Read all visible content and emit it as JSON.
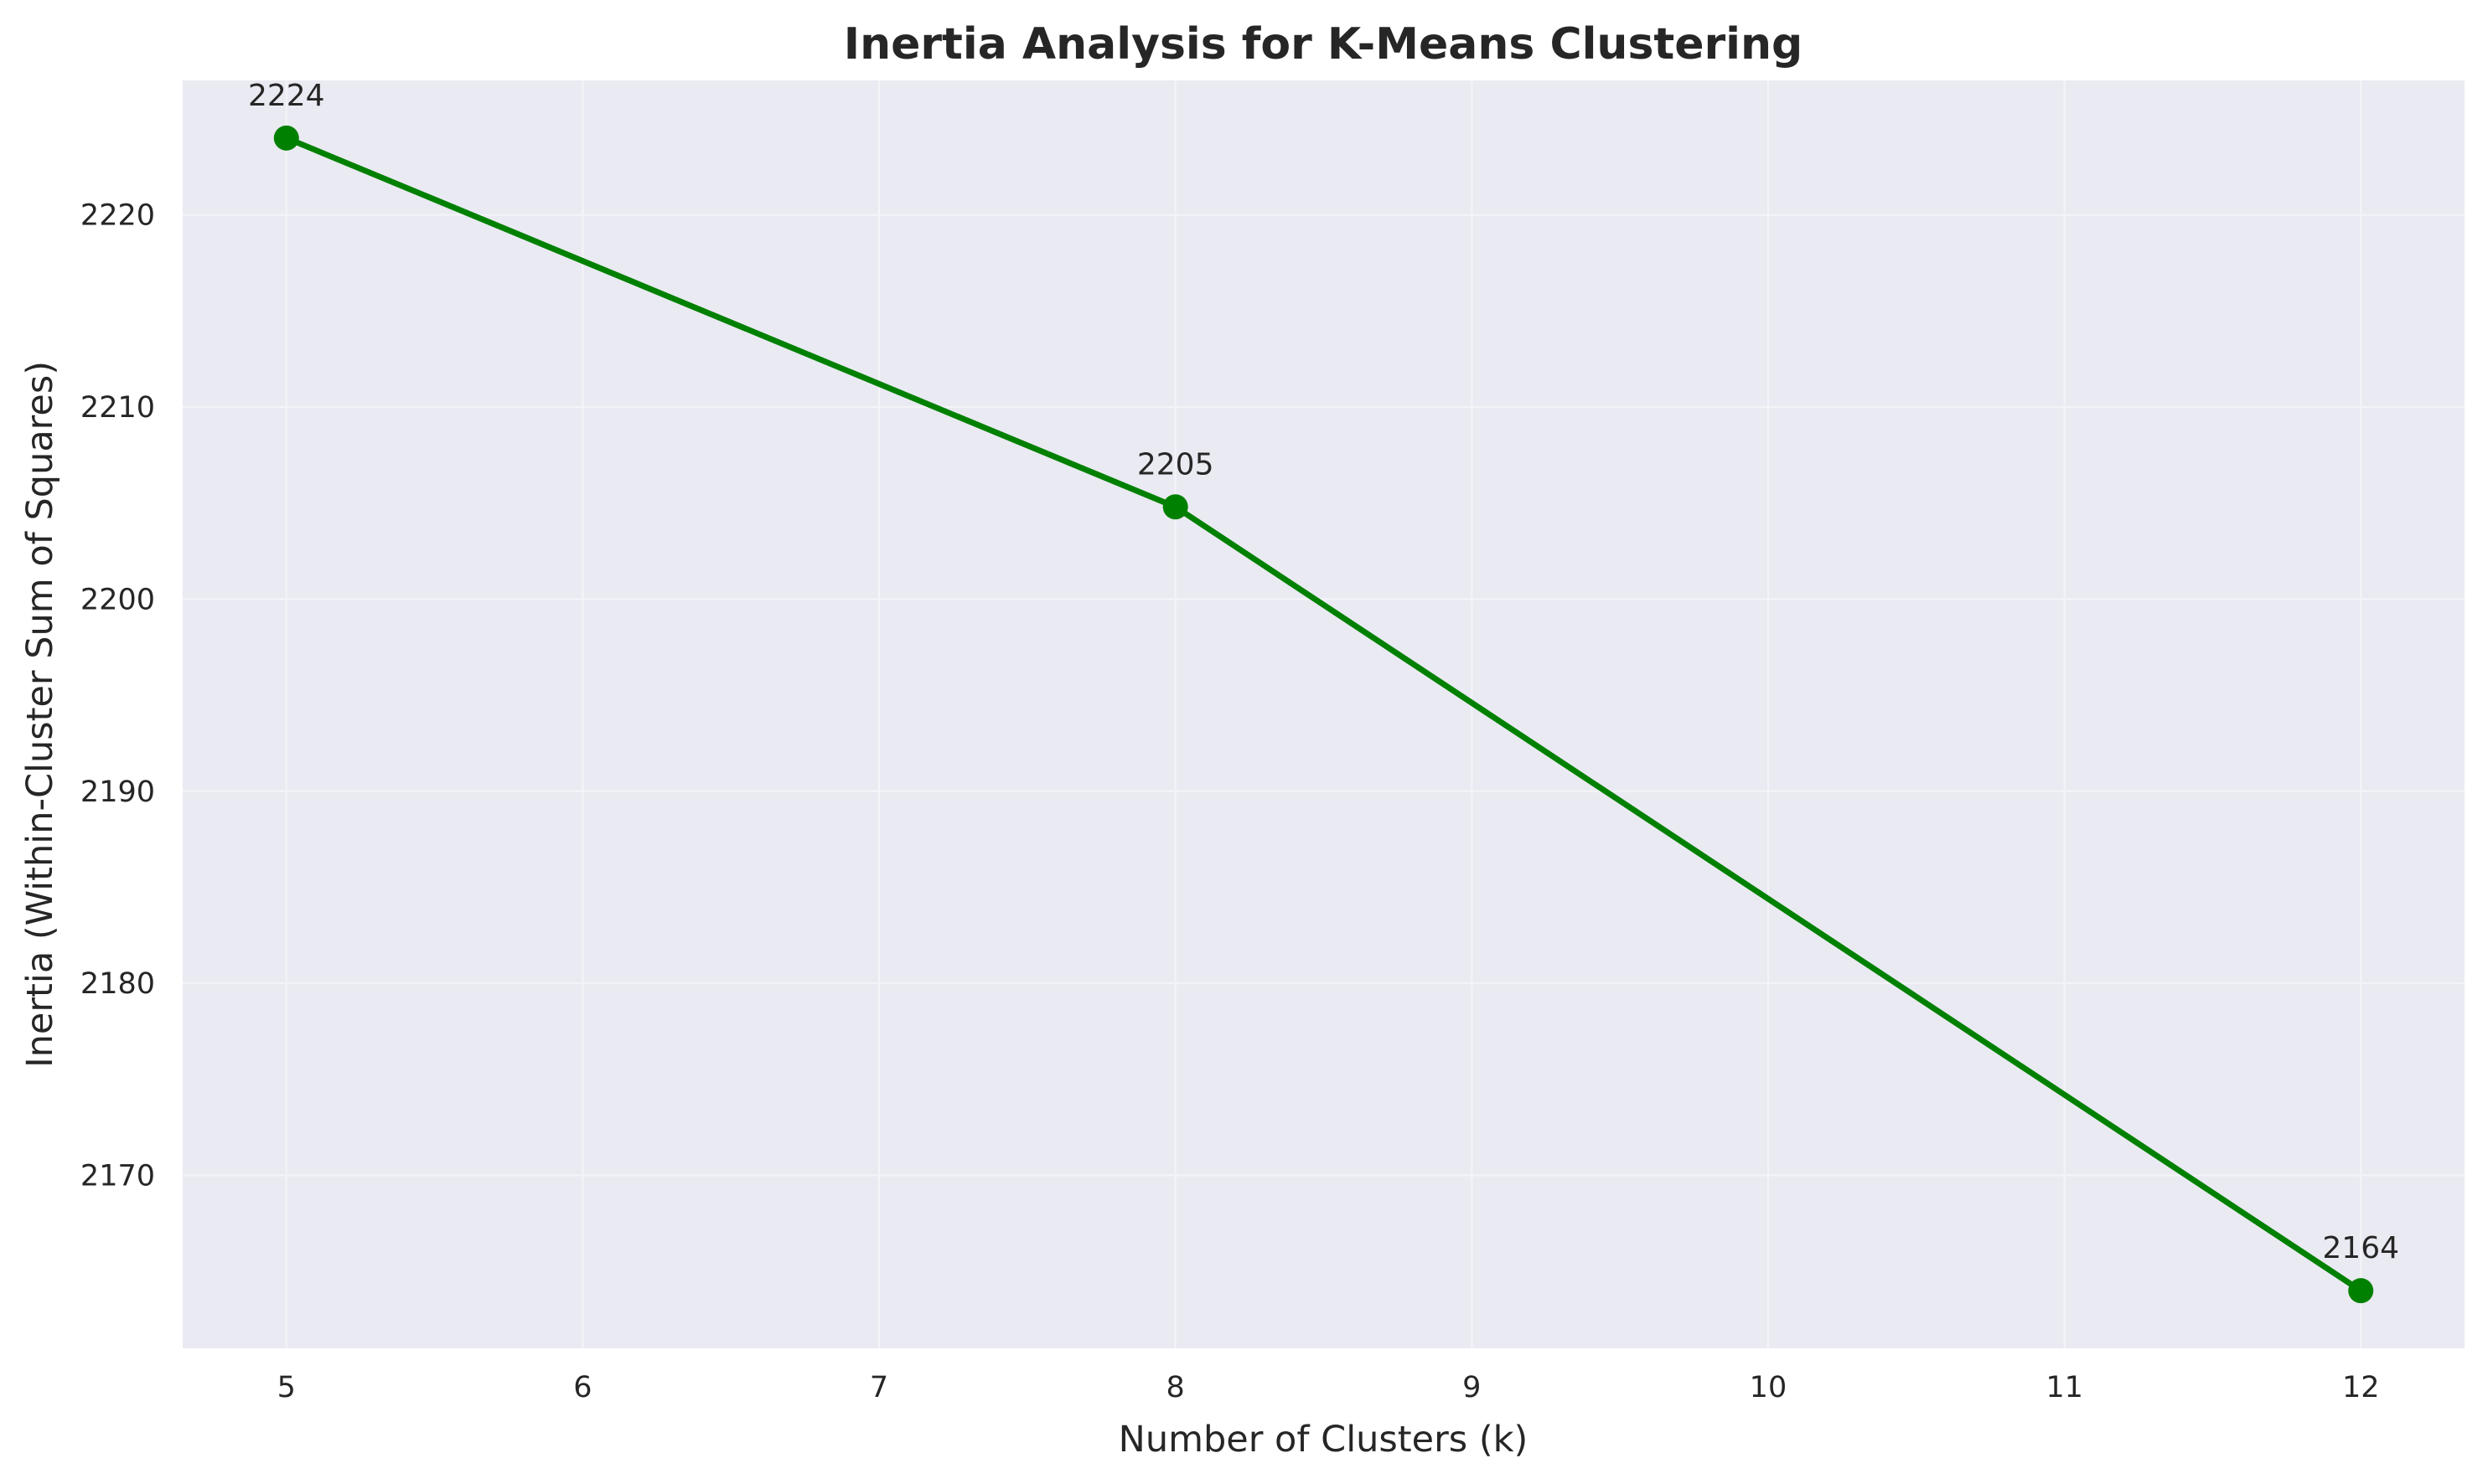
{
  "chart_data": {
    "type": "line",
    "title": "Inertia Analysis for K-Means Clustering",
    "xlabel": "Number of Clusters (k)",
    "ylabel": "Inertia (Within-Cluster Sum of Squares)",
    "xlim": [
      4.65,
      12.35
    ],
    "ylim": [
      2161.0,
      2227.0
    ],
    "xticks": [
      5,
      6,
      7,
      8,
      9,
      10,
      11,
      12
    ],
    "yticks": [
      2170,
      2180,
      2190,
      2200,
      2210,
      2220
    ],
    "grid": true,
    "series": [
      {
        "x": [
          5,
          8,
          12
        ],
        "y": [
          2224.0,
          2204.8,
          2164.0
        ],
        "labels": [
          "2224",
          "2205",
          "2164"
        ],
        "color": "#008000"
      }
    ]
  },
  "colors": {
    "background": "#eaeaf2",
    "grid": "#f4f4f8",
    "text": "#262626"
  }
}
